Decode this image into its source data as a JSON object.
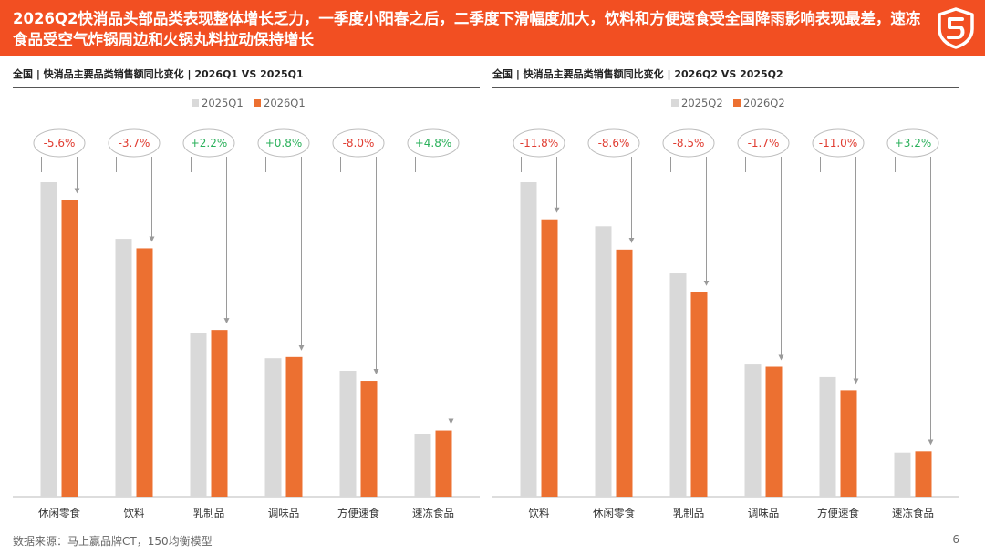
{
  "header": {
    "title": "2026Q2快消品头部品类表现整体增长乏力，一季度小阳春之后，二季度下滑幅度加大，饮料和方便速食受全国降雨影响表现最差，速冻食品受空气炸锅周边和火锅丸料拉动保持增长",
    "brand_color": "#f24f22",
    "logo_icon": "shield-logo-icon"
  },
  "chart_data": [
    {
      "type": "bar",
      "title": "全国 | 快消品主要品类销售额同比变化 | 2026Q1 VS 2025Q1",
      "categories": [
        "休闲零食",
        "饮料",
        "乳制品",
        "调味品",
        "方便速食",
        "速冻食品"
      ],
      "series": [
        {
          "name": "2025Q1",
          "color": "#d9d9d9",
          "values": [
            100,
            82,
            52,
            44,
            40,
            20
          ]
        },
        {
          "name": "2026Q1",
          "color": "#ec7031",
          "values": [
            94.4,
            79,
            53,
            44.4,
            36.8,
            21
          ]
        }
      ],
      "change_labels": [
        "-5.6%",
        "-3.7%",
        "+2.2%",
        "+0.8%",
        "-8.0%",
        "+4.8%"
      ],
      "legend": "top-center",
      "ylim": [
        0,
        110
      ]
    },
    {
      "type": "bar",
      "title": "全国 | 快消品主要品类销售额同比变化 | 2026Q2 VS 2025Q2",
      "categories": [
        "饮料",
        "休闲零食",
        "乳制品",
        "调味品",
        "方便速食",
        "速冻食品"
      ],
      "series": [
        {
          "name": "2025Q2",
          "color": "#d9d9d9",
          "values": [
            100,
            86,
            71,
            42,
            38,
            14
          ]
        },
        {
          "name": "2026Q2",
          "color": "#ec7031",
          "values": [
            88.2,
            78.6,
            65,
            41.3,
            33.8,
            14.4
          ]
        }
      ],
      "change_labels": [
        "-11.8%",
        "-8.6%",
        "-8.5%",
        "-1.7%",
        "-11.0%",
        "+3.2%"
      ],
      "legend": "top-center",
      "ylim": [
        0,
        110
      ]
    }
  ],
  "colors": {
    "negative": "#e03c31",
    "positive": "#2ab05a"
  },
  "footer": {
    "source": "数据来源：马上赢品牌CT，150均衡模型",
    "page": "6"
  }
}
